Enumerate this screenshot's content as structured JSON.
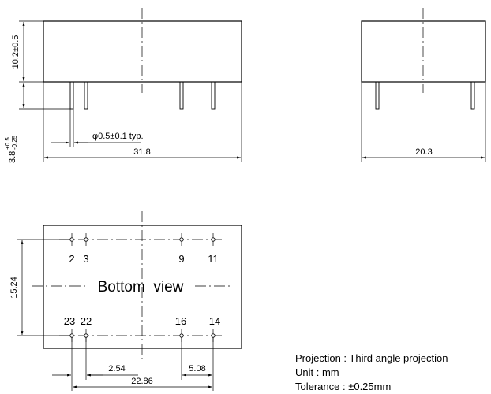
{
  "front_view": {
    "dim_body_height": "10.2±0.5",
    "dim_pin_length_main": "3.8",
    "dim_pin_length_sup": "+0.5",
    "dim_pin_length_sub": "-0.25",
    "dim_pin_diameter": "φ0.5±0.1 typ.",
    "dim_overall_length": "31.8"
  },
  "side_view": {
    "dim_width": "20.3"
  },
  "bottom_view": {
    "title": "Bottom  view",
    "pins_top": [
      "2",
      "3",
      "9",
      "11"
    ],
    "pins_bottom": [
      "23",
      "22",
      "16",
      "14"
    ],
    "dim_height": "15.24",
    "dim_pitch": "2.54",
    "dim_pitch_right": "5.08",
    "dim_span": "22.86"
  },
  "notes": {
    "projection": "Projection : Third angle projection",
    "unit": "Unit : mm",
    "tolerance": "Tolerance : ±0.25mm"
  }
}
